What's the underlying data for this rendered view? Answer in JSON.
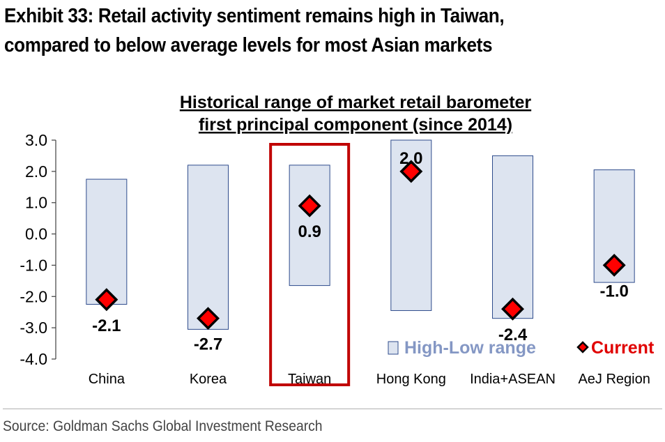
{
  "exhibit": {
    "title_line1": "Exhibit 33: Retail activity sentiment remains high in Taiwan,",
    "title_line2": "compared to below average levels for most Asian markets"
  },
  "source": "Source: Goldman Sachs Global Investment Research",
  "colors": {
    "range_fill": "#dde4f0",
    "range_stroke": "#2e4b8c",
    "marker_fill": "#ff0000",
    "marker_stroke": "#000000",
    "highlight": "#c00000",
    "legend_range_text": "#8497c4",
    "legend_current_text": "#e00000",
    "axis": "#404040"
  },
  "chart_data": {
    "type": "range-bar",
    "title_line1": "Historical range of market retail barometer",
    "title_line2": "first principal component (since 2014)",
    "categories": [
      "China",
      "Korea",
      "Taiwan",
      "Hong Kong",
      "India+ASEAN",
      "AeJ Region"
    ],
    "high": [
      1.75,
      2.2,
      2.2,
      3.0,
      2.5,
      2.05
    ],
    "low": [
      -2.25,
      -3.05,
      -1.65,
      -2.45,
      -2.7,
      -1.55
    ],
    "current": [
      -2.1,
      -2.7,
      0.9,
      2.0,
      -2.4,
      -1.0
    ],
    "current_labels": [
      "-2.1",
      "-2.7",
      "0.9",
      "2.0",
      "-2.4",
      "-1.0"
    ],
    "ylim": [
      -4.0,
      3.0
    ],
    "yticks": [
      "3.0",
      "2.0",
      "1.0",
      "0.0",
      "-1.0",
      "-2.0",
      "-3.0",
      "-4.0"
    ],
    "ytick_values": [
      3,
      2,
      1,
      0,
      -1,
      -2,
      -3,
      -4
    ],
    "highlight_category": "Taiwan",
    "legend": [
      "High-Low range",
      "Current"
    ],
    "legend_position": "bottom-right",
    "grid": false
  }
}
